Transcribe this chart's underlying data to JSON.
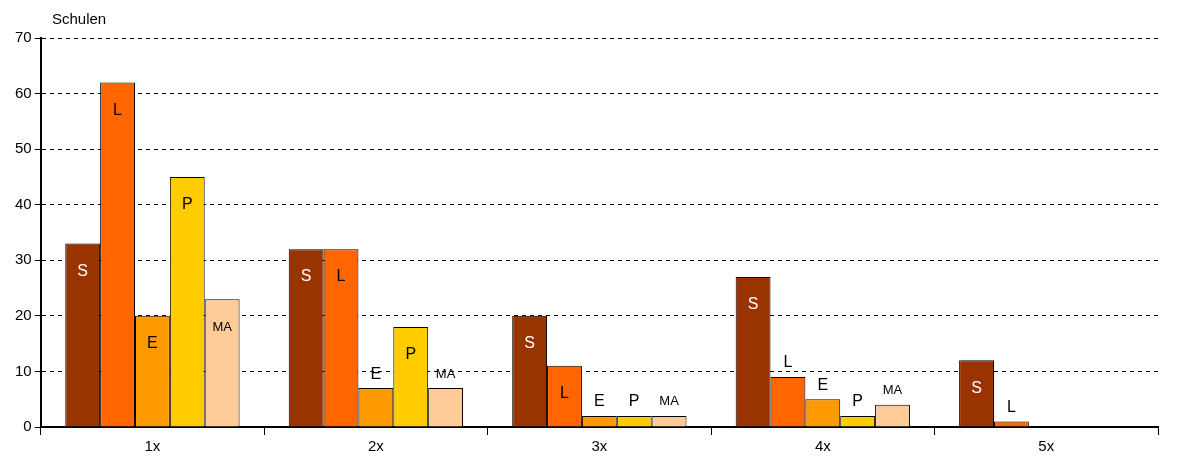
{
  "chart_data": {
    "type": "bar",
    "ylabel": "Schulen",
    "categories": [
      "1x",
      "2x",
      "3x",
      "4x",
      "5x"
    ],
    "series": [
      {
        "name": "S",
        "color": "#993300",
        "values": [
          33,
          32,
          20,
          27,
          12
        ]
      },
      {
        "name": "L",
        "color": "#ff6600",
        "values": [
          62,
          32,
          11,
          9,
          1
        ]
      },
      {
        "name": "E",
        "color": "#ff9900",
        "values": [
          20,
          7,
          2,
          5,
          null
        ]
      },
      {
        "name": "P",
        "color": "#ffcc00",
        "values": [
          45,
          18,
          2,
          2,
          null
        ]
      },
      {
        "name": "MA",
        "color": "#ffcc99",
        "values": [
          23,
          7,
          2,
          4,
          null
        ]
      }
    ],
    "ylim": [
      0,
      70
    ],
    "yticks": [
      0,
      10,
      20,
      30,
      40,
      50,
      60,
      70
    ],
    "grid": "y",
    "legend": false
  }
}
